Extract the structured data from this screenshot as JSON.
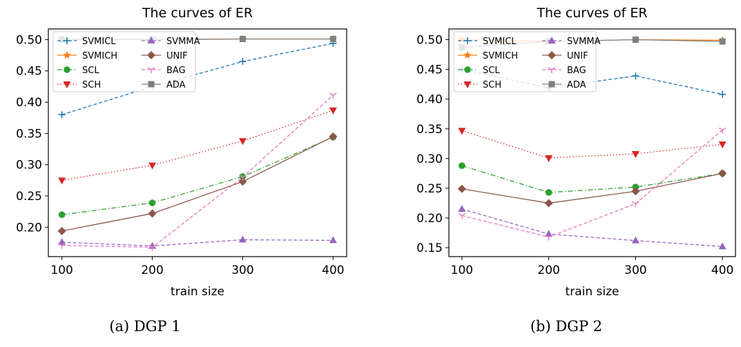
{
  "figure": {
    "captions": [
      "(a) DGP 1",
      "(b) DGP 2"
    ]
  },
  "chart_data": [
    {
      "type": "line",
      "title": "The curves of ER",
      "xlabel": "train size",
      "ylabel": "",
      "x": [
        100,
        200,
        300,
        400
      ],
      "xticks": [
        100,
        200,
        300,
        400
      ],
      "xlim": [
        85,
        415
      ],
      "ylim": [
        0.153,
        0.517
      ],
      "yticks": [
        0.2,
        0.25,
        0.3,
        0.35,
        0.4,
        0.45,
        0.5
      ],
      "yticklabels": [
        "0.20",
        "0.25",
        "0.30",
        "0.35",
        "0.40",
        "0.45",
        "0.50"
      ],
      "legend_position": "top-left",
      "legend_columns": 2,
      "series": [
        {
          "name": "SVMICL",
          "values": [
            0.38,
            0.425,
            0.465,
            0.494
          ],
          "color": "#1f77b4",
          "marker": "plus",
          "dash": "dashed"
        },
        {
          "name": "SVMICH",
          "values": [
            0.5,
            0.5,
            0.501,
            0.501
          ],
          "color": "#ff7f0e",
          "marker": "star",
          "dash": "solid"
        },
        {
          "name": "SCL",
          "values": [
            0.22,
            0.239,
            0.281,
            0.344
          ],
          "color": "#2ca02c",
          "marker": "circle",
          "dash": "dashdot"
        },
        {
          "name": "SCH",
          "values": [
            0.275,
            0.299,
            0.338,
            0.387
          ],
          "color": "#d62728",
          "marker": "triangle-down",
          "dash": "dotted"
        },
        {
          "name": "SVMMA",
          "values": [
            0.176,
            0.17,
            0.18,
            0.179
          ],
          "color": "#9467bd",
          "marker": "triangle-up",
          "dash": "dashed"
        },
        {
          "name": "UNIF",
          "values": [
            0.194,
            0.222,
            0.273,
            0.345
          ],
          "color": "#8c564b",
          "marker": "diamond",
          "dash": "solid"
        },
        {
          "name": "BAG",
          "values": [
            0.171,
            0.168,
            0.28,
            0.411
          ],
          "color": "#e377c2",
          "marker": "tri-down",
          "dash": "dashed"
        },
        {
          "name": "ADA",
          "values": [
            0.5,
            0.5,
            0.501,
            0.501
          ],
          "color": "#7f7f7f",
          "marker": "square",
          "dash": "solid"
        }
      ]
    },
    {
      "type": "line",
      "title": "The curves of ER",
      "xlabel": "train size",
      "ylabel": "",
      "x": [
        100,
        200,
        300,
        400
      ],
      "xticks": [
        100,
        200,
        300,
        400
      ],
      "xlim": [
        85,
        415
      ],
      "ylim": [
        0.135,
        0.518
      ],
      "yticks": [
        0.15,
        0.2,
        0.25,
        0.3,
        0.35,
        0.4,
        0.45,
        0.5
      ],
      "yticklabels": [
        "0.15",
        "0.20",
        "0.25",
        "0.30",
        "0.35",
        "0.40",
        "0.45",
        "0.50"
      ],
      "legend_position": "top-left",
      "legend_columns": 2,
      "series": [
        {
          "name": "SVMICL",
          "values": [
            0.45,
            0.419,
            0.439,
            0.408
          ],
          "color": "#1f77b4",
          "marker": "plus",
          "dash": "dashed"
        },
        {
          "name": "SVMICH",
          "values": [
            0.5,
            0.497,
            0.5,
            0.499
          ],
          "color": "#ff7f0e",
          "marker": "star",
          "dash": "solid"
        },
        {
          "name": "SCL",
          "values": [
            0.288,
            0.243,
            0.252,
            0.275
          ],
          "color": "#2ca02c",
          "marker": "circle",
          "dash": "dashdot"
        },
        {
          "name": "SCH",
          "values": [
            0.347,
            0.301,
            0.308,
            0.324
          ],
          "color": "#d62728",
          "marker": "triangle-down",
          "dash": "dotted"
        },
        {
          "name": "SVMMA",
          "values": [
            0.215,
            0.173,
            0.162,
            0.152
          ],
          "color": "#9467bd",
          "marker": "triangle-up",
          "dash": "dashed"
        },
        {
          "name": "UNIF",
          "values": [
            0.249,
            0.225,
            0.245,
            0.275
          ],
          "color": "#8c564b",
          "marker": "diamond",
          "dash": "solid"
        },
        {
          "name": "BAG",
          "values": [
            0.204,
            0.168,
            0.224,
            0.348
          ],
          "color": "#e377c2",
          "marker": "tri-down",
          "dash": "dashed"
        },
        {
          "name": "ADA",
          "values": [
            0.487,
            0.497,
            0.5,
            0.497
          ],
          "color": "#7f7f7f",
          "marker": "square",
          "dash": "solid"
        }
      ]
    }
  ]
}
